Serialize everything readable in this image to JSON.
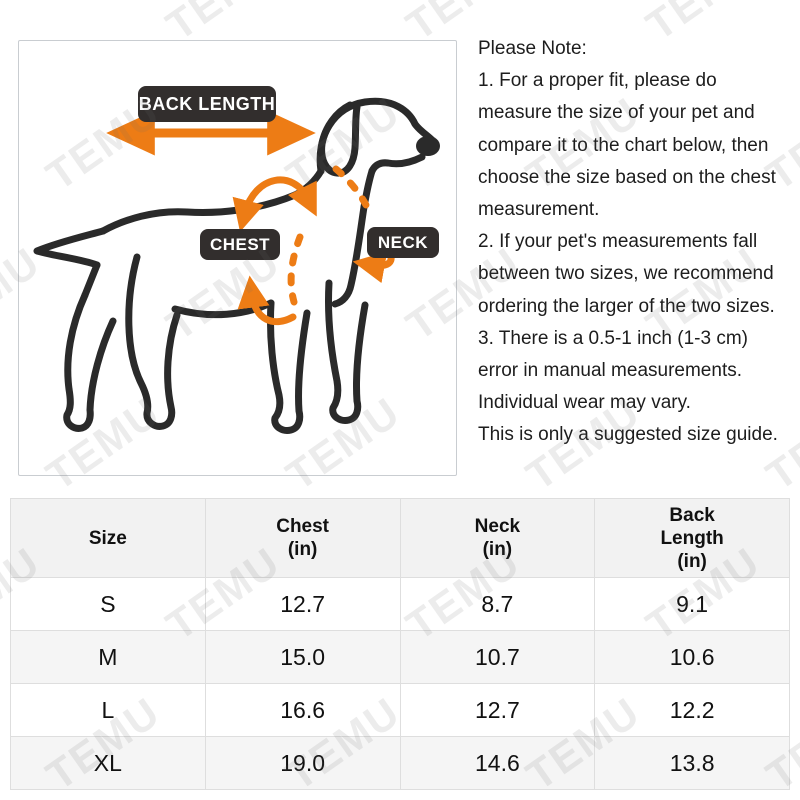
{
  "watermark": {
    "text": "TEMU",
    "color": "rgba(110,110,110,0.13)"
  },
  "colors": {
    "accent_orange": "#ED7C15",
    "badge_bg": "#322E2D",
    "badge_text": "#FFFFFF",
    "dog_outline": "#2A2A2A",
    "table_header_bg": "#F2F2F2",
    "table_alt_row_bg": "#F5F5F5",
    "table_grid": "#DEDEDE",
    "panel_border": "#C9CDD1",
    "text": "#1D1D1D"
  },
  "diagram": {
    "labels": {
      "back_length": "BACK LENGTH",
      "chest": "CHEST",
      "neck": "NECK"
    }
  },
  "note": {
    "lines": [
      "Please Note:",
      "1. For a proper fit, please do",
      "measure the size of your pet and",
      "compare it to the chart below, then",
      "choose the size based on the chest",
      "measurement.",
      "2. If your pet's measurements fall",
      "between two sizes, we recommend",
      "ordering the larger of the two sizes.",
      "3. There is a 0.5-1 inch (1-3 cm)",
      "error in manual measurements.",
      "Individual wear may vary.",
      "This is only a suggested size guide."
    ]
  },
  "table": {
    "headers": [
      {
        "lines": [
          "Size"
        ]
      },
      {
        "lines": [
          "Chest",
          "(in)"
        ]
      },
      {
        "lines": [
          "Neck",
          "(in)"
        ]
      },
      {
        "lines": [
          "Back",
          "Length",
          "(in)"
        ]
      }
    ],
    "rows": [
      {
        "size": "S",
        "chest": "12.7",
        "neck": "8.7",
        "back_length": "9.1"
      },
      {
        "size": "M",
        "chest": "15.0",
        "neck": "10.7",
        "back_length": "10.6"
      },
      {
        "size": "L",
        "chest": "16.6",
        "neck": "12.7",
        "back_length": "12.2"
      },
      {
        "size": "XL",
        "chest": "19.0",
        "neck": "14.6",
        "back_length": "13.8"
      }
    ]
  }
}
